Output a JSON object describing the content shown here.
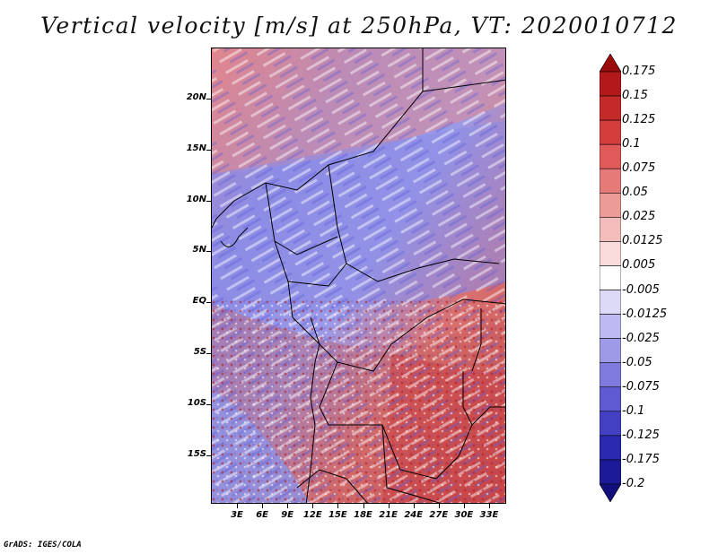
{
  "title": "Vertical velocity [m/s] at 250hPa, VT: 2020010712",
  "credit": "GrADS: IGES/COLA",
  "lat_labels": [
    "20N",
    "15N",
    "10N",
    "5N",
    "EQ",
    "5S",
    "10S",
    "15S"
  ],
  "lon_labels": [
    "3E",
    "6E",
    "9E",
    "12E",
    "15E",
    "18E",
    "21E",
    "24E",
    "27E",
    "30E",
    "33E"
  ],
  "colorbar": {
    "levels": [
      "0.175",
      "0.15",
      "0.125",
      "0.1",
      "0.075",
      "0.05",
      "0.025",
      "0.0125",
      "0.005",
      "-0.005",
      "-0.0125",
      "-0.025",
      "-0.05",
      "-0.075",
      "-0.1",
      "-0.125",
      "-0.175",
      "-0.2"
    ],
    "colors": [
      "#9b0d0d",
      "#b3191a",
      "#c52a2b",
      "#d53c3c",
      "#e05a59",
      "#e57a78",
      "#ec9b99",
      "#f3bdbc",
      "#f9dcdb",
      "#ffffff",
      "#dcdaf7",
      "#bdb9f1",
      "#9e9ae8",
      "#7f7ade",
      "#5f5ad2",
      "#4440c4",
      "#2b28b2",
      "#1c1a97",
      "#120f7c"
    ]
  },
  "map_colors": {
    "positive": "#d9474a",
    "negative": "#6a6be0",
    "neutral": "#ffffff",
    "borders": "#000000"
  }
}
